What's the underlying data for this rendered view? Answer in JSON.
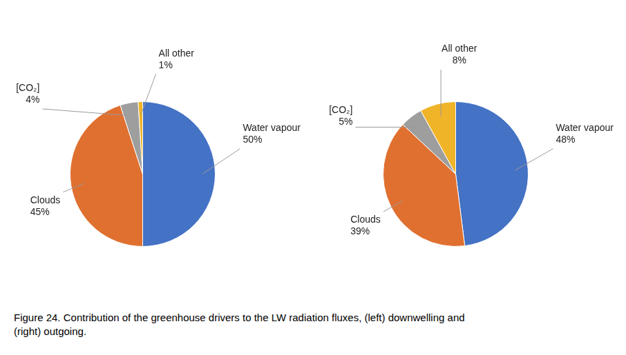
{
  "chart_data": [
    {
      "type": "pie",
      "categories": [
        "Water vapour",
        "Clouds",
        "[CO₂]",
        "All other"
      ],
      "values": [
        50,
        45,
        4,
        1
      ],
      "value_labels": [
        "50%",
        "45%",
        "4%",
        "1%"
      ],
      "colors": [
        "#4472C4",
        "#E07030",
        "#9E9E9E",
        "#F0B429"
      ],
      "data_labels": true
    },
    {
      "type": "pie",
      "categories": [
        "Water vapour",
        "Clouds",
        "[CO₂]",
        "All other"
      ],
      "values": [
        48,
        39,
        5,
        8
      ],
      "value_labels": [
        "48%",
        "39%",
        "5%",
        "8%"
      ],
      "colors": [
        "#4472C4",
        "#E07030",
        "#9E9E9E",
        "#F0B429"
      ],
      "data_labels": true
    }
  ],
  "caption": "Figure 24. Contribution of the greenhouse drivers to the LW radiation fluxes, (left) downwelling and\n(right) outgoing."
}
